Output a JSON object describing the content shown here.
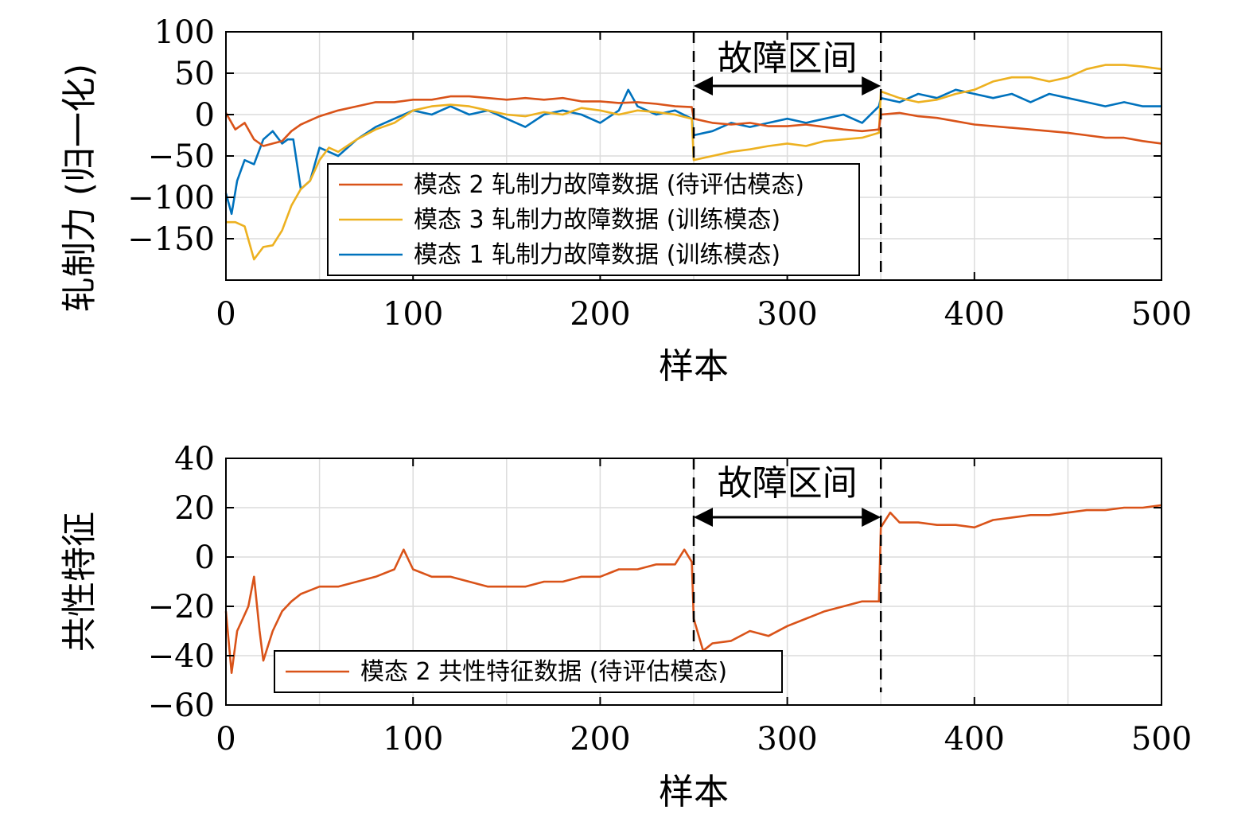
{
  "chart_data": [
    {
      "type": "line",
      "xlabel": "样本",
      "ylabel": "轧制力 (归一化)",
      "xlim": [
        0,
        500
      ],
      "ylim": [
        -200,
        100
      ],
      "xticks": [
        0,
        100,
        200,
        300,
        400,
        500
      ],
      "yticks": [
        100,
        50,
        0,
        -50,
        -100,
        -150
      ],
      "ytick_labels": [
        "100",
        "50",
        "0",
        "−50",
        "−100",
        "−150"
      ],
      "grid": true,
      "legend_position": "center-bottom",
      "fault_interval": {
        "start": 250,
        "end": 350,
        "label": "故障区间"
      },
      "series": [
        {
          "name": "模态 2 轧制力故障数据 (待评估模态)",
          "color": "#d95319",
          "x": [
            0,
            5,
            10,
            15,
            20,
            25,
            30,
            35,
            40,
            50,
            60,
            70,
            80,
            90,
            100,
            110,
            120,
            130,
            140,
            150,
            160,
            170,
            180,
            190,
            200,
            210,
            220,
            230,
            240,
            249,
            250,
            260,
            270,
            280,
            290,
            300,
            310,
            320,
            330,
            340,
            349,
            350,
            360,
            370,
            380,
            390,
            400,
            410,
            420,
            430,
            440,
            450,
            460,
            470,
            480,
            490,
            500
          ],
          "y": [
            2,
            -18,
            -10,
            -30,
            -38,
            -35,
            -32,
            -20,
            -12,
            -2,
            5,
            10,
            15,
            15,
            18,
            18,
            22,
            22,
            20,
            18,
            20,
            18,
            20,
            16,
            16,
            14,
            15,
            13,
            10,
            9,
            -5,
            -10,
            -12,
            -10,
            -14,
            -14,
            -12,
            -15,
            -18,
            -20,
            -18,
            0,
            2,
            -2,
            -4,
            -8,
            -12,
            -14,
            -16,
            -18,
            -20,
            -22,
            -25,
            -28,
            -28,
            -32,
            -35
          ]
        },
        {
          "name": "模态 3 轧制力故障数据 (训练模态)",
          "color": "#edb120",
          "x": [
            0,
            5,
            10,
            15,
            20,
            25,
            30,
            35,
            40,
            45,
            50,
            55,
            60,
            70,
            80,
            90,
            100,
            110,
            120,
            130,
            140,
            150,
            160,
            170,
            180,
            190,
            200,
            210,
            220,
            230,
            240,
            249,
            250,
            260,
            270,
            280,
            290,
            300,
            310,
            320,
            330,
            340,
            349,
            350,
            360,
            370,
            380,
            390,
            400,
            410,
            420,
            430,
            440,
            450,
            460,
            470,
            480,
            490,
            500
          ],
          "y": [
            -130,
            -130,
            -135,
            -175,
            -160,
            -158,
            -140,
            -110,
            -90,
            -80,
            -55,
            -40,
            -45,
            -30,
            -18,
            -10,
            5,
            10,
            12,
            10,
            5,
            0,
            -2,
            3,
            0,
            8,
            5,
            0,
            5,
            3,
            0,
            -5,
            -55,
            -50,
            -45,
            -42,
            -38,
            -35,
            -38,
            -32,
            -30,
            -28,
            -22,
            28,
            20,
            15,
            18,
            25,
            30,
            40,
            45,
            45,
            40,
            45,
            55,
            60,
            60,
            58,
            55
          ]
        },
        {
          "name": "模态 1 轧制力故障数据 (训练模态)",
          "color": "#0072bd",
          "x": [
            0,
            3,
            6,
            10,
            15,
            20,
            25,
            30,
            33,
            36,
            40,
            45,
            50,
            55,
            60,
            70,
            80,
            90,
            100,
            110,
            120,
            130,
            140,
            150,
            160,
            170,
            180,
            190,
            200,
            210,
            215,
            220,
            230,
            240,
            249,
            250,
            260,
            270,
            280,
            290,
            300,
            310,
            320,
            330,
            340,
            349,
            350,
            360,
            370,
            380,
            390,
            400,
            410,
            420,
            430,
            440,
            450,
            460,
            470,
            480,
            490,
            500
          ],
          "y": [
            -95,
            -120,
            -80,
            -55,
            -60,
            -30,
            -20,
            -35,
            -30,
            -30,
            -90,
            -80,
            -40,
            -45,
            -50,
            -30,
            -15,
            -5,
            5,
            0,
            10,
            0,
            5,
            -5,
            -15,
            0,
            5,
            0,
            -10,
            5,
            30,
            10,
            0,
            5,
            -5,
            -25,
            -20,
            -10,
            -15,
            -10,
            -5,
            -10,
            -5,
            0,
            -10,
            10,
            20,
            15,
            25,
            20,
            30,
            25,
            20,
            25,
            15,
            25,
            20,
            15,
            10,
            15,
            10,
            10
          ]
        }
      ]
    },
    {
      "type": "line",
      "xlabel": "样本",
      "ylabel": "共性特征",
      "xlim": [
        0,
        500
      ],
      "ylim": [
        -60,
        40
      ],
      "xticks": [
        0,
        100,
        200,
        300,
        400,
        500
      ],
      "yticks": [
        40,
        20,
        0,
        -20,
        -40,
        -60
      ],
      "ytick_labels": [
        "40",
        "20",
        "0",
        "−20",
        "−40",
        "−60"
      ],
      "grid": true,
      "legend_position": "bottom-left",
      "fault_interval": {
        "start": 250,
        "end": 350,
        "label": "故障区间"
      },
      "series": [
        {
          "name": "模态 2 共性特征数据 (待评估模态)",
          "color": "#d95319",
          "x": [
            0,
            3,
            6,
            9,
            12,
            15,
            18,
            20,
            25,
            30,
            35,
            40,
            50,
            60,
            70,
            80,
            90,
            95,
            100,
            110,
            120,
            130,
            140,
            150,
            160,
            170,
            180,
            190,
            200,
            210,
            220,
            230,
            240,
            245,
            249,
            250,
            255,
            260,
            270,
            280,
            290,
            300,
            310,
            320,
            330,
            340,
            349,
            350,
            355,
            360,
            370,
            380,
            390,
            400,
            410,
            420,
            430,
            440,
            450,
            460,
            470,
            480,
            490,
            500
          ],
          "y": [
            -22,
            -47,
            -30,
            -25,
            -20,
            -8,
            -30,
            -42,
            -30,
            -22,
            -18,
            -15,
            -12,
            -12,
            -10,
            -8,
            -5,
            3,
            -5,
            -8,
            -8,
            -10,
            -12,
            -12,
            -12,
            -10,
            -10,
            -8,
            -8,
            -5,
            -5,
            -3,
            -3,
            3,
            -2,
            -25,
            -38,
            -35,
            -34,
            -30,
            -32,
            -28,
            -25,
            -22,
            -20,
            -18,
            -18,
            12,
            18,
            14,
            14,
            13,
            13,
            12,
            15,
            16,
            17,
            17,
            18,
            19,
            19,
            20,
            20,
            21
          ]
        }
      ]
    }
  ]
}
